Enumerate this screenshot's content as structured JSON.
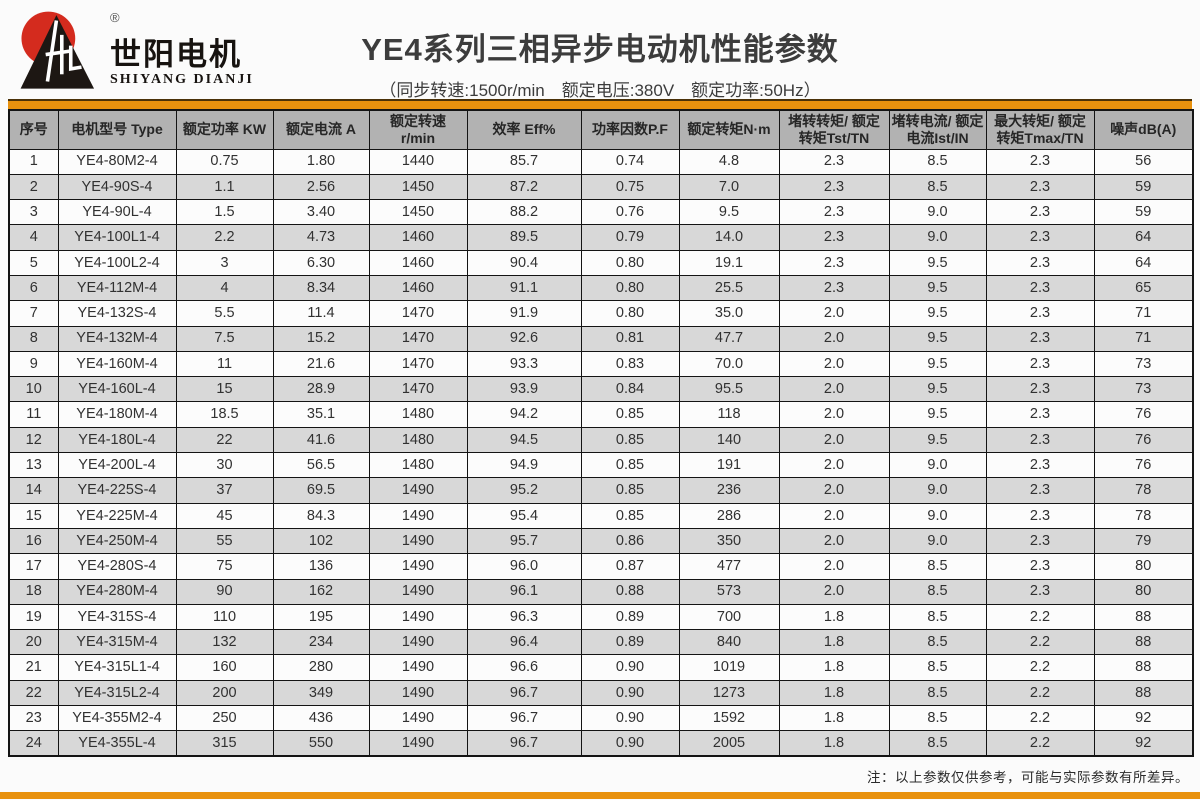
{
  "logo": {
    "brand_cn": "世阳电机",
    "brand_en": "SHIYANG DIANJI",
    "registered_mark": "®"
  },
  "header": {
    "title": "YE4系列三相异步电动机性能参数",
    "subtitle": "（同步转速:1500r/min　额定电压:380V　额定功率:50Hz）"
  },
  "table": {
    "columns": [
      "序号",
      "电机型号 Type",
      "额定功率 KW",
      "额定电流 A",
      "额定转速 r/min",
      "效率 Eff%",
      "功率因数P.F",
      "额定转矩N·m",
      "堵转转矩/ 额定转矩Tst/TN",
      "堵转电流/ 额定电流Ist/IN",
      "最大转矩/ 额定转矩Tmax/TN",
      "噪声dB(A)"
    ],
    "rows": [
      [
        "1",
        "YE4-80M2-4",
        "0.75",
        "1.80",
        "1440",
        "85.7",
        "0.74",
        "4.8",
        "2.3",
        "8.5",
        "2.3",
        "56"
      ],
      [
        "2",
        "YE4-90S-4",
        "1.1",
        "2.56",
        "1450",
        "87.2",
        "0.75",
        "7.0",
        "2.3",
        "8.5",
        "2.3",
        "59"
      ],
      [
        "3",
        "YE4-90L-4",
        "1.5",
        "3.40",
        "1450",
        "88.2",
        "0.76",
        "9.5",
        "2.3",
        "9.0",
        "2.3",
        "59"
      ],
      [
        "4",
        "YE4-100L1-4",
        "2.2",
        "4.73",
        "1460",
        "89.5",
        "0.79",
        "14.0",
        "2.3",
        "9.0",
        "2.3",
        "64"
      ],
      [
        "5",
        "YE4-100L2-4",
        "3",
        "6.30",
        "1460",
        "90.4",
        "0.80",
        "19.1",
        "2.3",
        "9.5",
        "2.3",
        "64"
      ],
      [
        "6",
        "YE4-112M-4",
        "4",
        "8.34",
        "1460",
        "91.1",
        "0.80",
        "25.5",
        "2.3",
        "9.5",
        "2.3",
        "65"
      ],
      [
        "7",
        "YE4-132S-4",
        "5.5",
        "11.4",
        "1470",
        "91.9",
        "0.80",
        "35.0",
        "2.0",
        "9.5",
        "2.3",
        "71"
      ],
      [
        "8",
        "YE4-132M-4",
        "7.5",
        "15.2",
        "1470",
        "92.6",
        "0.81",
        "47.7",
        "2.0",
        "9.5",
        "2.3",
        "71"
      ],
      [
        "9",
        "YE4-160M-4",
        "11",
        "21.6",
        "1470",
        "93.3",
        "0.83",
        "70.0",
        "2.0",
        "9.5",
        "2.3",
        "73"
      ],
      [
        "10",
        "YE4-160L-4",
        "15",
        "28.9",
        "1470",
        "93.9",
        "0.84",
        "95.5",
        "2.0",
        "9.5",
        "2.3",
        "73"
      ],
      [
        "11",
        "YE4-180M-4",
        "18.5",
        "35.1",
        "1480",
        "94.2",
        "0.85",
        "118",
        "2.0",
        "9.5",
        "2.3",
        "76"
      ],
      [
        "12",
        "YE4-180L-4",
        "22",
        "41.6",
        "1480",
        "94.5",
        "0.85",
        "140",
        "2.0",
        "9.5",
        "2.3",
        "76"
      ],
      [
        "13",
        "YE4-200L-4",
        "30",
        "56.5",
        "1480",
        "94.9",
        "0.85",
        "191",
        "2.0",
        "9.0",
        "2.3",
        "76"
      ],
      [
        "14",
        "YE4-225S-4",
        "37",
        "69.5",
        "1490",
        "95.2",
        "0.85",
        "236",
        "2.0",
        "9.0",
        "2.3",
        "78"
      ],
      [
        "15",
        "YE4-225M-4",
        "45",
        "84.3",
        "1490",
        "95.4",
        "0.85",
        "286",
        "2.0",
        "9.0",
        "2.3",
        "78"
      ],
      [
        "16",
        "YE4-250M-4",
        "55",
        "102",
        "1490",
        "95.7",
        "0.86",
        "350",
        "2.0",
        "9.0",
        "2.3",
        "79"
      ],
      [
        "17",
        "YE4-280S-4",
        "75",
        "136",
        "1490",
        "96.0",
        "0.87",
        "477",
        "2.0",
        "8.5",
        "2.3",
        "80"
      ],
      [
        "18",
        "YE4-280M-4",
        "90",
        "162",
        "1490",
        "96.1",
        "0.88",
        "573",
        "2.0",
        "8.5",
        "2.3",
        "80"
      ],
      [
        "19",
        "YE4-315S-4",
        "110",
        "195",
        "1490",
        "96.3",
        "0.89",
        "700",
        "1.8",
        "8.5",
        "2.2",
        "88"
      ],
      [
        "20",
        "YE4-315M-4",
        "132",
        "234",
        "1490",
        "96.4",
        "0.89",
        "840",
        "1.8",
        "8.5",
        "2.2",
        "88"
      ],
      [
        "21",
        "YE4-315L1-4",
        "160",
        "280",
        "1490",
        "96.6",
        "0.90",
        "1019",
        "1.8",
        "8.5",
        "2.2",
        "88"
      ],
      [
        "22",
        "YE4-315L2-4",
        "200",
        "349",
        "1490",
        "96.7",
        "0.90",
        "1273",
        "1.8",
        "8.5",
        "2.2",
        "88"
      ],
      [
        "23",
        "YE4-355M2-4",
        "250",
        "436",
        "1490",
        "96.7",
        "0.90",
        "1592",
        "1.8",
        "8.5",
        "2.2",
        "92"
      ],
      [
        "24",
        "YE4-355L-4",
        "315",
        "550",
        "1490",
        "96.7",
        "0.90",
        "2005",
        "1.8",
        "8.5",
        "2.2",
        "92"
      ]
    ]
  },
  "footer": {
    "note": "注：以上参数仅供参考，可能与实际参数有所差异。"
  },
  "colors": {
    "accent_orange": "#E8910E",
    "accent_bar_top_edge": "#4A3108",
    "header_cell_gray": "#B2B2B2",
    "row_alt_gray": "#D8D8D8",
    "logo_red": "#D42B1E",
    "logo_black": "#171310",
    "table_border": "#141414",
    "text_dark": "#3C3C3C"
  }
}
